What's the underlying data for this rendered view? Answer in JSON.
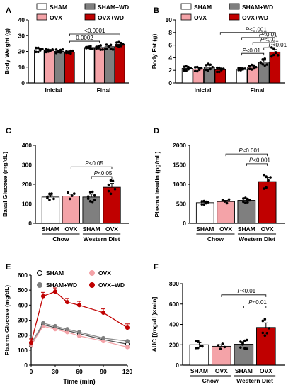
{
  "colors": {
    "sham": "#ffffff",
    "ovx": "#f4a3a8",
    "sham_wd": "#7f7f7f",
    "ovx_wd": "#c00000",
    "line_sham": "#555555",
    "line_shamwd": "#8c8c8c"
  },
  "chart_data": [
    {
      "panel": "A",
      "type": "bar",
      "ylabel": "Body Weight (g)",
      "ylim": [
        0,
        40
      ],
      "yticks": [
        0,
        10,
        20,
        30,
        40
      ],
      "groups": [
        "Inicial",
        "Final"
      ],
      "legend": [
        "SHAM",
        "SHAM+WD",
        "OVX",
        "OVX+WD"
      ],
      "series": [
        {
          "name": "SHAM",
          "values": [
            21,
            22.5
          ],
          "err": [
            0.8,
            0.5
          ]
        },
        {
          "name": "OVX",
          "values": [
            20.5,
            22.5
          ],
          "err": [
            0.5,
            0.8
          ]
        },
        {
          "name": "SHAM+WD",
          "values": [
            20,
            23
          ],
          "err": [
            0.7,
            1
          ]
        },
        {
          "name": "OVX+WD",
          "values": [
            19.5,
            24.5
          ],
          "err": [
            0.5,
            0.8
          ]
        }
      ],
      "annotations": [
        "<0.0001",
        "0.0002"
      ]
    },
    {
      "panel": "B",
      "type": "bar",
      "ylabel": "Body Fat (g)",
      "ylim": [
        0,
        10
      ],
      "yticks": [
        0,
        2,
        4,
        6,
        8,
        10
      ],
      "groups": [
        "Inicial",
        "Final"
      ],
      "legend": [
        "SHAM",
        "SHAM+WD",
        "OVX",
        "OVX+WD"
      ],
      "series": [
        {
          "name": "SHAM",
          "values": [
            2.3,
            2.2
          ],
          "err": [
            0.2,
            0.1
          ]
        },
        {
          "name": "OVX",
          "values": [
            2.2,
            2.5
          ],
          "err": [
            0.2,
            0.2
          ]
        },
        {
          "name": "SHAM+WD",
          "values": [
            2.5,
            3.3
          ],
          "err": [
            0.3,
            0.3
          ]
        },
        {
          "name": "OVX+WD",
          "values": [
            2.1,
            4.9
          ],
          "err": [
            0.2,
            0.4
          ]
        }
      ],
      "annotations": [
        "P<0.001",
        "P<0.01",
        "P<0.01",
        "P<0.01",
        "P<0.01"
      ]
    },
    {
      "panel": "C",
      "type": "bar",
      "ylabel": "Basal Glucose (mg/dL)",
      "ylim": [
        0,
        400
      ],
      "yticks": [
        0,
        100,
        200,
        300,
        400
      ],
      "categories": [
        "SHAM",
        "OVX",
        "SHAM",
        "OVX"
      ],
      "diet_labels": [
        "Chow",
        "Western Diet"
      ],
      "values": [
        135,
        140,
        135,
        185
      ],
      "err": [
        10,
        10,
        15,
        20
      ],
      "annotations": [
        "P<0.05",
        "P<0.05"
      ]
    },
    {
      "panel": "D",
      "type": "bar",
      "ylabel": "Plasma Insulin (pg/mL)",
      "ylim": [
        0,
        2000
      ],
      "yticks": [
        0,
        500,
        1000,
        1500,
        2000
      ],
      "categories": [
        "SHAM",
        "OVX",
        "SHAM",
        "OVX"
      ],
      "diet_labels": [
        "Chow",
        "Western Diet"
      ],
      "values": [
        530,
        560,
        590,
        1070
      ],
      "err": [
        25,
        30,
        35,
        100
      ],
      "annotations": [
        "P<0.001",
        "P<0.001"
      ]
    },
    {
      "panel": "E",
      "type": "line",
      "ylabel": "Plasma Glucose (mg/dL)",
      "xlabel": "Time (min)",
      "ylim": [
        0,
        600
      ],
      "yticks": [
        0,
        100,
        200,
        300,
        400,
        500,
        600
      ],
      "xlim": [
        0,
        120
      ],
      "xticks": [
        0,
        30,
        60,
        90,
        120
      ],
      "x": [
        0,
        15,
        30,
        45,
        60,
        90,
        120
      ],
      "legend": [
        "SHAM",
        "OVX",
        "SHAM+WD",
        "OVX+WD"
      ],
      "series": [
        {
          "name": "SHAM",
          "values": [
            130,
            270,
            250,
            230,
            210,
            170,
            140
          ]
        },
        {
          "name": "OVX",
          "values": [
            135,
            260,
            240,
            220,
            195,
            160,
            120
          ]
        },
        {
          "name": "SHAM+WD",
          "values": [
            145,
            280,
            260,
            240,
            220,
            180,
            160
          ]
        },
        {
          "name": "OVX+WD",
          "values": [
            150,
            460,
            490,
            420,
            400,
            350,
            250
          ]
        }
      ]
    },
    {
      "panel": "F",
      "type": "bar",
      "ylabel": "AUC [(mg/dL)×min]",
      "ylim": [
        0,
        800
      ],
      "yticks": [
        0,
        200,
        400,
        600,
        800
      ],
      "categories": [
        "SHAM",
        "OVX",
        "SHAM",
        "OVX"
      ],
      "diet_labels": [
        "Chow",
        "Western Diet"
      ],
      "values": [
        200,
        185,
        205,
        370
      ],
      "err": [
        20,
        15,
        25,
        45
      ],
      "annotations": [
        "P<0.01",
        "P<0.01"
      ]
    }
  ]
}
